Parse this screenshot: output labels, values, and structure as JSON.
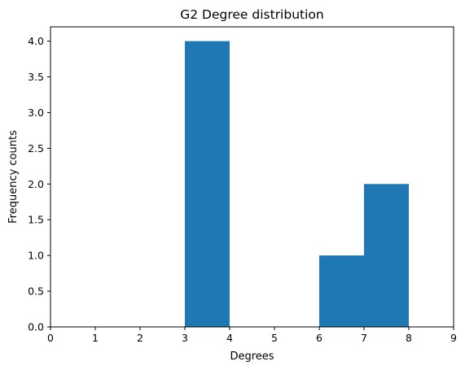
{
  "chart_data": {
    "type": "bar",
    "title": "G2 Degree distribution",
    "xlabel": "Degrees",
    "ylabel": "Frequency counts",
    "xlim": [
      0,
      9
    ],
    "ylim": [
      0,
      4.2
    ],
    "x_ticks": [
      "0",
      "1",
      "2",
      "3",
      "4",
      "5",
      "6",
      "7",
      "8",
      "9"
    ],
    "y_ticks": [
      "0.0",
      "0.5",
      "1.0",
      "1.5",
      "2.0",
      "2.5",
      "3.0",
      "3.5",
      "4.0"
    ],
    "bins": [
      {
        "start": 3,
        "end": 4,
        "value": 4
      },
      {
        "start": 6,
        "end": 7,
        "value": 1
      },
      {
        "start": 7,
        "end": 8,
        "value": 2
      }
    ],
    "bar_color": "#1f77b4",
    "grid": false,
    "legend": "none"
  }
}
